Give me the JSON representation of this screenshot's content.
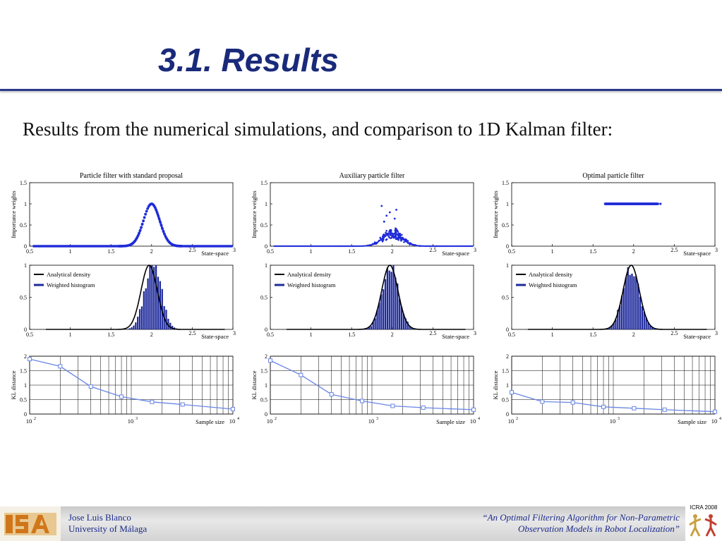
{
  "slide": {
    "title": "3.1. Results",
    "subtitle": "Results from the numerical simulations, and comparison to 1D Kalman filter:"
  },
  "footer": {
    "author": "Jose Luis Blanco",
    "affiliation": "University of Málaga",
    "paper_line1": "“An Optimal Filtering Algorithm for Non-Parametric",
    "paper_line2": "Observation Models in Robot Localization”",
    "logo_text": "ISA",
    "badge_text": "ICRA 2008"
  },
  "colors": {
    "title": "#1a2a7a",
    "series_blue": "#1f2bd8",
    "histogram": "#1f2a9c",
    "kl_line": "#6a86e6",
    "analytical": "#000000"
  },
  "chart_data": [
    {
      "type": "scatter",
      "title": "Particle filter with standard proposal",
      "ylabel": "Importance weights",
      "xlabel": "State-space",
      "xlim": [
        0.5,
        3
      ],
      "ylim": [
        0,
        1.5
      ],
      "xticks": [
        "0.5",
        "1",
        "1.5",
        "2",
        "2.5",
        "3"
      ],
      "yticks": [
        "0",
        "0.5",
        "1",
        "1.5"
      ],
      "series": [
        {
          "distribution": "gaussian",
          "mean": 2.0,
          "sd": 0.1,
          "peak": 1.0
        }
      ]
    },
    {
      "type": "scatter",
      "title": "Auxiliary particle filter",
      "ylabel": "Importance weights",
      "xlabel": "State-space",
      "xlim": [
        0.5,
        3
      ],
      "ylim": [
        0,
        1.5
      ],
      "xticks": [
        "0.5",
        "1",
        "1.5",
        "2",
        "2.5",
        "3"
      ],
      "yticks": [
        "0",
        "0.5",
        "1",
        "1.5"
      ],
      "series": [
        {
          "distribution": "gaussian_noisy",
          "mean": 2.0,
          "sd": 0.12,
          "peak": 0.3,
          "max_outlier": 0.95
        }
      ]
    },
    {
      "type": "scatter",
      "title": "Optimal particle filter",
      "ylabel": "Importance weights",
      "xlabel": "State-space",
      "xlim": [
        0.5,
        3
      ],
      "ylim": [
        0,
        1.5
      ],
      "xticks": [
        "0.5",
        "1",
        "1.5",
        "2",
        "2.5",
        "3"
      ],
      "yticks": [
        "0",
        "0.5",
        "1",
        "1.5"
      ],
      "series": [
        {
          "distribution": "constant",
          "value": 1.0,
          "x_from": 1.65,
          "x_to": 2.3
        }
      ]
    },
    {
      "type": "bar",
      "xlabel": "State-space",
      "xlim": [
        0.5,
        3
      ],
      "ylim": [
        0,
        1
      ],
      "xticks": [
        "0.5",
        "1",
        "1.5",
        "2",
        "2.5",
        "3"
      ],
      "yticks": [
        "0",
        "0.5",
        "1"
      ],
      "legend": [
        "Analytical density",
        "Weighted histogram"
      ],
      "legend_position": "top-left",
      "analytical": {
        "mean": 1.97,
        "sd": 0.1,
        "peak": 1.0
      },
      "histogram": {
        "mean": 2.02,
        "sd": 0.1,
        "peak": 1.05,
        "bin_width": 0.025
      }
    },
    {
      "type": "bar",
      "xlabel": "State-space",
      "xlim": [
        0.5,
        3
      ],
      "ylim": [
        0,
        1
      ],
      "xticks": [
        "0.5",
        "1",
        "1.5",
        "2",
        "2.5",
        "3"
      ],
      "yticks": [
        "0",
        "0.5",
        "1"
      ],
      "legend": [
        "Analytical density",
        "Weighted histogram"
      ],
      "legend_position": "top-left",
      "analytical": {
        "mean": 1.97,
        "sd": 0.1,
        "peak": 1.0
      },
      "histogram": {
        "mean": 1.98,
        "sd": 0.1,
        "peak": 1.0,
        "bin_width": 0.025
      }
    },
    {
      "type": "bar",
      "xlabel": "State-space",
      "xlim": [
        0.5,
        3
      ],
      "ylim": [
        0,
        1
      ],
      "xticks": [
        "0.5",
        "1",
        "1.5",
        "2",
        "2.5",
        "3"
      ],
      "yticks": [
        "0",
        "0.5",
        "1"
      ],
      "legend": [
        "Analytical density",
        "Weighted histogram"
      ],
      "legend_position": "top-left",
      "analytical": {
        "mean": 1.97,
        "sd": 0.1,
        "peak": 1.0
      },
      "histogram": {
        "mean": 1.97,
        "sd": 0.1,
        "peak": 1.0,
        "bin_width": 0.025
      }
    },
    {
      "type": "line",
      "xlabel": "Sample size",
      "ylabel": "KL distance",
      "xscale": "log",
      "xlim": [
        100,
        10000
      ],
      "ylim": [
        0,
        2
      ],
      "grid": true,
      "yticks": [
        "0",
        "0.5",
        "1",
        "1.5",
        "2"
      ],
      "series": [
        {
          "x": [
            100,
            200,
            400,
            800,
            1600,
            3200,
            10000
          ],
          "y": [
            1.9,
            1.65,
            0.95,
            0.6,
            0.42,
            0.33,
            0.17
          ]
        }
      ]
    },
    {
      "type": "line",
      "xlabel": "Sample size",
      "ylabel": "KL distance",
      "xscale": "log",
      "xlim": [
        100,
        10000
      ],
      "ylim": [
        0,
        2
      ],
      "grid": true,
      "yticks": [
        "0",
        "0.5",
        "1",
        "1.5",
        "2"
      ],
      "series": [
        {
          "x": [
            100,
            200,
            400,
            800,
            1600,
            3200,
            10000
          ],
          "y": [
            1.85,
            1.35,
            0.68,
            0.45,
            0.28,
            0.22,
            0.15
          ]
        }
      ]
    },
    {
      "type": "line",
      "xlabel": "Sample size",
      "ylabel": "KL distance",
      "xscale": "log",
      "xlim": [
        100,
        10000
      ],
      "ylim": [
        0,
        2
      ],
      "grid": true,
      "yticks": [
        "0",
        "0.5",
        "1",
        "1.5",
        "2"
      ],
      "series": [
        {
          "x": [
            100,
            200,
            400,
            800,
            1600,
            3200,
            10000
          ],
          "y": [
            0.75,
            0.43,
            0.4,
            0.25,
            0.2,
            0.15,
            0.08
          ]
        }
      ]
    }
  ]
}
